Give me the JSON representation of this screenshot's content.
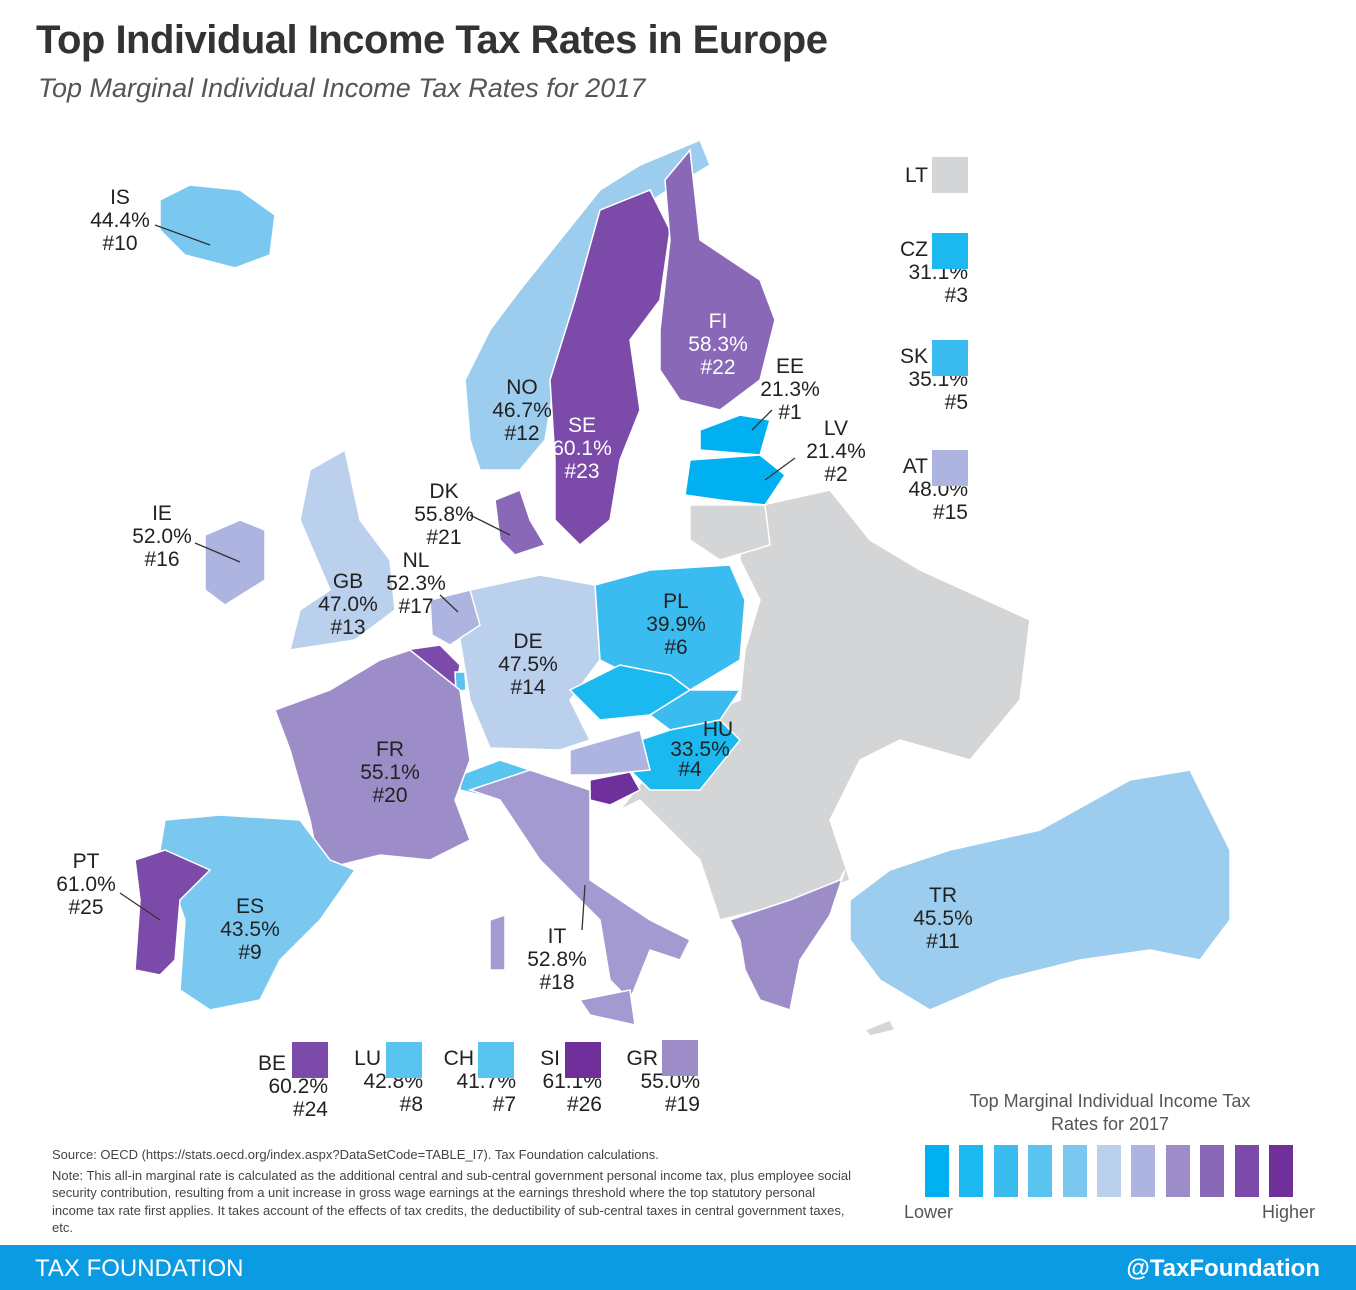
{
  "title": "Top Individual Income Tax Rates in Europe",
  "subtitle": "Top Marginal Individual Income Tax Rates for 2017",
  "colors": {
    "non_oecd": "#d4d5d7",
    "scale": [
      "#00b0f0",
      "#1cb8f0",
      "#3bbcf0",
      "#5ac4f0",
      "#7ac8f0",
      "#bad0ec",
      "#adb4e0",
      "#9c8cc8",
      "#8a68b8",
      "#7c4aa8",
      "#70309c"
    ],
    "footer": "#0a9be3"
  },
  "countries": {
    "IS": {
      "code": "IS",
      "rate": "44.4%",
      "rank": "#10",
      "color": "#7ac8f0"
    },
    "NO": {
      "code": "NO",
      "rate": "46.7%",
      "rank": "#12",
      "color": "#9ccdee"
    },
    "SE": {
      "code": "SE",
      "rate": "60.1%",
      "rank": "#23",
      "color": "#7c4aa8"
    },
    "FI": {
      "code": "FI",
      "rate": "58.3%",
      "rank": "#22",
      "color": "#8a68b8"
    },
    "EE": {
      "code": "EE",
      "rate": "21.3%",
      "rank": "#1",
      "color": "#00b0f0"
    },
    "LV": {
      "code": "LV",
      "rate": "21.4%",
      "rank": "#2",
      "color": "#00b0f0"
    },
    "LT": {
      "code": "LT",
      "color": "#d4d5d7"
    },
    "DK": {
      "code": "DK",
      "rate": "55.8%",
      "rank": "#21",
      "color": "#8a68b8"
    },
    "IE": {
      "code": "IE",
      "rate": "52.0%",
      "rank": "#16",
      "color": "#adb4e0"
    },
    "GB": {
      "code": "GB",
      "rate": "47.0%",
      "rank": "#13",
      "color": "#bad0ec"
    },
    "NL": {
      "code": "NL",
      "rate": "52.3%",
      "rank": "#17",
      "color": "#adb4e0"
    },
    "BE": {
      "code": "BE",
      "rate": "60.2%",
      "rank": "#24",
      "color": "#7c4aa8"
    },
    "LU": {
      "code": "LU",
      "rate": "42.8%",
      "rank": "#8",
      "color": "#5ac4f0"
    },
    "DE": {
      "code": "DE",
      "rate": "47.5%",
      "rank": "#14",
      "color": "#bad0ec"
    },
    "PL": {
      "code": "PL",
      "rate": "39.9%",
      "rank": "#6",
      "color": "#3bbcf0"
    },
    "CZ": {
      "code": "CZ",
      "rate": "31.1%",
      "rank": "#3",
      "color": "#1cb8f0"
    },
    "SK": {
      "code": "SK",
      "rate": "35.1%",
      "rank": "#5",
      "color": "#3bbcf0"
    },
    "HU": {
      "code": "HU",
      "rate": "33.5%",
      "rank": "#4",
      "color": "#1cb8f0"
    },
    "AT": {
      "code": "AT",
      "rate": "48.0%",
      "rank": "#15",
      "color": "#adb4e0"
    },
    "SI": {
      "code": "SI",
      "rate": "61.1%",
      "rank": "#26",
      "color": "#70309c"
    },
    "CH": {
      "code": "CH",
      "rate": "41.7%",
      "rank": "#7",
      "color": "#5ac4f0"
    },
    "FR": {
      "code": "FR",
      "rate": "55.1%",
      "rank": "#20",
      "color": "#9c8cc8"
    },
    "IT": {
      "code": "IT",
      "rate": "52.8%",
      "rank": "#18",
      "color": "#a39ad2"
    },
    "ES": {
      "code": "ES",
      "rate": "43.5%",
      "rank": "#9",
      "color": "#7ac8f0"
    },
    "PT": {
      "code": "PT",
      "rate": "61.0%",
      "rank": "#25",
      "color": "#7c4aa8"
    },
    "GR": {
      "code": "GR",
      "rate": "55.0%",
      "rank": "#19",
      "color": "#9c8cc8"
    },
    "TR": {
      "code": "TR",
      "rate": "45.5%",
      "rank": "#11",
      "color": "#9ccdee"
    }
  },
  "legend": {
    "title": "Top Marginal Individual Income Tax Rates for 2017",
    "lower": "Lower",
    "higher": "Higher"
  },
  "source": "Source:  OECD (https://stats.oecd.org/index.aspx?DataSetCode=TABLE_I7). Tax Foundation calculations.",
  "note": "Note: This all-in marginal rate is calculated as the additional central and sub-central government personal income tax, plus employee social security contribution, resulting from a unit increase in gross wage earnings at the earnings threshold where the top statutory personal income tax rate first applies. It takes account of the effects of tax credits, the deductibility of sub-central taxes in central government taxes, etc.",
  "footer": {
    "brand": "TAX FOUNDATION",
    "handle": "@TaxFoundation"
  }
}
